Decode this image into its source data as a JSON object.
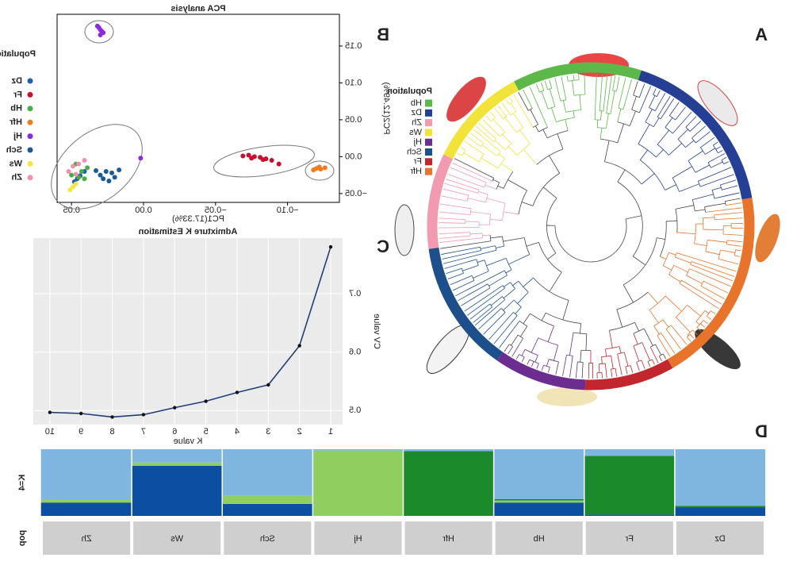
{
  "panel_labels": [
    "A",
    "B",
    "C",
    "D"
  ],
  "chart_data": [
    {
      "type": "scatter",
      "title": "PCA analysis",
      "x_label": "PC1(17.33%)",
      "y_label": "PC2(12.49%)",
      "legend_title": "Population",
      "xlim": [
        -0.136,
        0.06
      ],
      "ylim": [
        -0.062,
        0.193
      ],
      "xticks": [
        {
          "value": -0.1,
          "label": "−0.10"
        },
        {
          "value": -0.05,
          "label": "−0.05"
        },
        {
          "value": 0,
          "label": "0.00"
        },
        0.05
      ],
      "yticks": [
        {
          "value": -0.05,
          "label": "−0.05"
        },
        {
          "value": 0,
          "label": "0.00"
        },
        0.05,
        {
          "value": 0.1,
          "label": "0.10"
        },
        0.15
      ],
      "series": [
        {
          "name": "Dz",
          "color": "#1f5fb0",
          "x": [
            0.041,
            0.044,
            0.046,
            0.048
          ],
          "y": [
            -0.02,
            -0.026,
            -0.03,
            -0.034
          ]
        },
        {
          "name": "Fr",
          "color": "#c8102e",
          "x": [
            -0.069,
            -0.073,
            -0.077,
            -0.081,
            -0.085,
            -0.089,
            -0.075,
            -0.083,
            -0.094
          ],
          "y": [
            0.001,
            0.002,
            0.0,
            -0.001,
            -0.003,
            -0.005,
            -0.002,
            -0.004,
            -0.01
          ]
        },
        {
          "name": "Hb",
          "color": "#44b044",
          "x": [
            0.039,
            0.043,
            0.047,
            0.05,
            0.041,
            0.045
          ],
          "y": [
            -0.015,
            -0.02,
            -0.01,
            -0.025,
            -0.03,
            -0.028
          ]
        },
        {
          "name": "Hfr",
          "color": "#f07c1e",
          "x": [
            -0.126,
            -0.123,
            -0.12,
            -0.118,
            -0.122
          ],
          "y": [
            -0.015,
            -0.017,
            -0.016,
            -0.018,
            -0.014
          ]
        },
        {
          "name": "Hj",
          "color": "#8a2be2",
          "x": [
            0.028,
            0.03,
            0.031,
            0.029,
            0.032,
            0.03,
            0.002
          ],
          "y": [
            0.168,
            0.172,
            0.175,
            0.17,
            0.177,
            0.165,
            -0.002
          ]
        },
        {
          "name": "Sch",
          "color": "#1a5a96",
          "x": [
            0.017,
            0.022,
            0.026,
            0.03,
            0.033,
            0.02,
            0.028,
            0.024
          ],
          "y": [
            -0.018,
            -0.022,
            -0.02,
            -0.025,
            -0.019,
            -0.028,
            -0.03,
            -0.033
          ]
        },
        {
          "name": "Ws",
          "color": "#f5e642",
          "x": [
            0.047,
            0.049,
            0.051
          ],
          "y": [
            -0.037,
            -0.041,
            -0.045
          ]
        },
        {
          "name": "Zh",
          "color": "#f48fb1",
          "x": [
            0.041,
            0.045,
            0.049,
            0.052,
            0.047
          ],
          "y": [
            -0.005,
            -0.01,
            -0.013,
            -0.02,
            -0.024
          ]
        }
      ]
    },
    {
      "type": "line",
      "title": "Admixture K Estimation",
      "x_label": "K value",
      "y_label": "CV value",
      "x": [
        1,
        2,
        3,
        4,
        5,
        6,
        7,
        8,
        9,
        10
      ],
      "values": [
        0.78,
        0.611,
        0.544,
        0.531,
        0.516,
        0.505,
        0.493,
        0.489,
        0.495,
        0.497
      ],
      "color": "#1f3f7a",
      "xlim": [
        0.62,
        10.53
      ],
      "ylim": [
        0.476,
        0.795
      ],
      "xticks": [
        1,
        2,
        3,
        4,
        5,
        6,
        7,
        8,
        9,
        10
      ],
      "yticks": [
        0.5,
        0.6,
        0.7
      ],
      "grid": true
    },
    {
      "type": "stacked_bar",
      "row_labels": [
        "K=4",
        "pop"
      ],
      "categories": [
        "Dz",
        "Fr",
        "Hb",
        "Hfr",
        "Hj",
        "Sch",
        "Ws",
        "Zh"
      ],
      "series": [
        {
          "color": "#0b4ea2",
          "values": [
            0.13,
            0.02,
            0.2,
            0,
            0,
            0.18,
            0.75,
            0.2
          ]
        },
        {
          "color": "#8fcf5f",
          "values": [
            0,
            0,
            0.03,
            0,
            0.98,
            0.12,
            0.05,
            0.05
          ]
        },
        {
          "color": "#1a8a2a",
          "values": [
            0.02,
            0.88,
            0.02,
            0.97,
            0,
            0,
            0,
            0
          ]
        },
        {
          "color": "#7fb6e0",
          "values": [
            0.85,
            0.1,
            0.75,
            0.03,
            0.02,
            0.7,
            0.2,
            0.75
          ]
        }
      ]
    },
    {
      "type": "dendrogram",
      "legend_title": "Population",
      "categories": [
        "Hb",
        "Dz",
        "Zh",
        "Ws",
        "Hj",
        "Sch",
        "Fr",
        "Hfr"
      ],
      "colors": [
        "#5cb848",
        "#243f93",
        "#f29bb0",
        "#f2e33a",
        "#6b2d90",
        "#1d4f8c",
        "#c1272d",
        "#e8732a"
      ]
    }
  ]
}
